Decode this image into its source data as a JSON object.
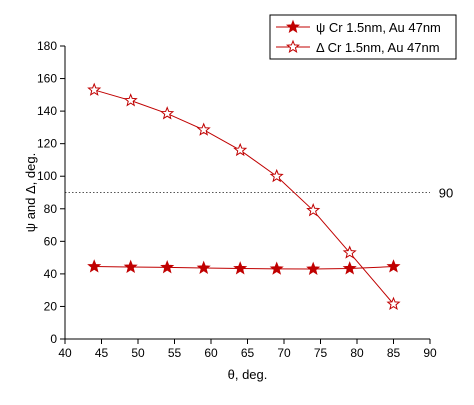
{
  "chart_data": {
    "type": "line",
    "xlabel": "θ, deg.",
    "ylabel": "ψ and Δ, deg.",
    "xlim": [
      40,
      90
    ],
    "ylim": [
      0,
      180
    ],
    "xticks": [
      40,
      45,
      50,
      55,
      60,
      65,
      70,
      75,
      80,
      85,
      90
    ],
    "yticks": [
      0,
      20,
      40,
      60,
      80,
      100,
      120,
      140,
      160,
      180
    ],
    "reference_line": {
      "y": 90,
      "label": "90",
      "style": "dotted"
    },
    "legend_position": "top-right",
    "series": [
      {
        "name": "ψ Cr 1.5nm, Au 47nm",
        "marker": "filled-star",
        "color": "#c00000",
        "x": [
          44,
          49,
          54,
          59,
          64,
          69,
          74,
          79,
          85
        ],
        "y": [
          44.5,
          44.2,
          44.0,
          43.6,
          43.3,
          43.1,
          43.0,
          43.3,
          44.5
        ]
      },
      {
        "name": "Δ Cr 1.5nm, Au 47nm",
        "marker": "open-star",
        "color": "#c00000",
        "x": [
          44,
          49,
          54,
          59,
          64,
          69,
          74,
          79,
          85
        ],
        "y": [
          153,
          146.5,
          138.5,
          128.5,
          116,
          100,
          79,
          53,
          21.5
        ]
      }
    ]
  }
}
